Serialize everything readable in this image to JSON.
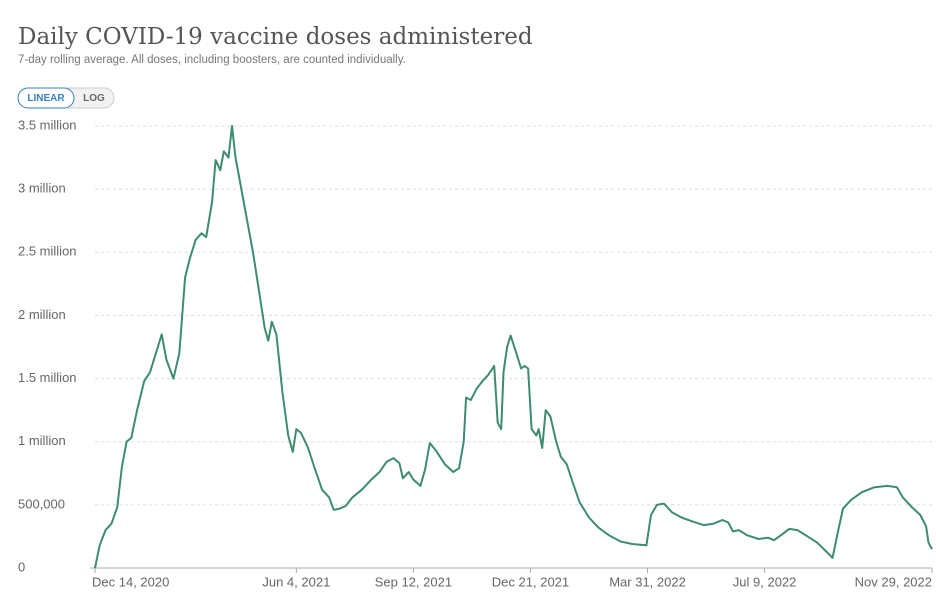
{
  "chart_data": {
    "type": "line",
    "title": "Daily COVID-19 vaccine doses administered",
    "subtitle": "7-day rolling average. All doses, including boosters, are counted individually.",
    "buttons": [
      "LINEAR",
      "LOG"
    ],
    "color": "#3d8c6d",
    "grid": true,
    "log_scale": false,
    "xlim": [
      "2020-12-14",
      "2022-11-29"
    ],
    "xticks": [
      {
        "value": "2020-12-14",
        "label": "Dec 14, 2020"
      },
      {
        "value": "2021-06-04",
        "label": "Jun 4, 2021"
      },
      {
        "value": "2021-09-12",
        "label": "Sep 12, 2021"
      },
      {
        "value": "2021-12-21",
        "label": "Dec 21, 2021"
      },
      {
        "value": "2022-03-31",
        "label": "Mar 31, 2022"
      },
      {
        "value": "2022-07-09",
        "label": "Jul 9, 2022"
      },
      {
        "value": "2022-11-29",
        "label": "Nov 29, 2022"
      }
    ],
    "ylim": [
      0,
      3500000
    ],
    "yticks": [
      0,
      {
        "value": 500000,
        "label": "500,000"
      },
      {
        "value": 1000000,
        "label": "1 million"
      },
      {
        "value": 1500000,
        "label": "1.5 million"
      },
      {
        "value": 2000000,
        "label": "2 million"
      },
      {
        "value": 2500000,
        "label": "2.5 million"
      },
      {
        "value": 3000000,
        "label": "3 million"
      },
      {
        "value": 3500000,
        "label": "3.5 million"
      }
    ],
    "x": [
      "2020-12-14",
      "2020-12-18",
      "2020-12-23",
      "2020-12-28",
      "2021-01-02",
      "2021-01-06",
      "2021-01-10",
      "2021-01-14",
      "2021-01-19",
      "2021-01-25",
      "2021-01-30",
      "2021-02-04",
      "2021-02-09",
      "2021-02-13",
      "2021-02-19",
      "2021-02-24",
      "2021-03-01",
      "2021-03-05",
      "2021-03-10",
      "2021-03-15",
      "2021-03-19",
      "2021-03-24",
      "2021-03-27",
      "2021-03-31",
      "2021-04-03",
      "2021-04-07",
      "2021-04-10",
      "2021-04-13",
      "2021-04-17",
      "2021-04-22",
      "2021-04-28",
      "2021-05-03",
      "2021-05-08",
      "2021-05-11",
      "2021-05-14",
      "2021-05-18",
      "2021-05-23",
      "2021-05-28",
      "2021-06-01",
      "2021-06-04",
      "2021-06-08",
      "2021-06-14",
      "2021-06-20",
      "2021-06-26",
      "2021-07-02",
      "2021-07-06",
      "2021-07-11",
      "2021-07-16",
      "2021-07-22",
      "2021-07-30",
      "2021-08-07",
      "2021-08-14",
      "2021-08-20",
      "2021-08-26",
      "2021-08-31",
      "2021-09-03",
      "2021-09-08",
      "2021-09-12",
      "2021-09-18",
      "2021-09-22",
      "2021-09-26",
      "2021-10-02",
      "2021-10-09",
      "2021-10-16",
      "2021-10-21",
      "2021-10-25",
      "2021-10-27",
      "2021-10-31",
      "2021-11-05",
      "2021-11-10",
      "2021-11-15",
      "2021-11-20",
      "2021-11-23",
      "2021-11-26",
      "2021-11-28",
      "2021-12-01",
      "2021-12-04",
      "2021-12-09",
      "2021-12-13",
      "2021-12-16",
      "2021-12-19",
      "2021-12-22",
      "2021-12-26",
      "2021-12-28",
      "2021-12-31",
      "2022-01-03",
      "2022-01-07",
      "2022-01-12",
      "2022-01-16",
      "2022-01-21",
      "2022-01-26",
      "2022-02-01",
      "2022-02-09",
      "2022-02-17",
      "2022-02-26",
      "2022-03-08",
      "2022-03-18",
      "2022-03-30",
      "2022-04-03",
      "2022-04-08",
      "2022-04-14",
      "2022-04-21",
      "2022-04-29",
      "2022-05-08",
      "2022-05-18",
      "2022-05-26",
      "2022-06-03",
      "2022-06-08",
      "2022-06-12",
      "2022-06-17",
      "2022-06-24",
      "2022-07-04",
      "2022-07-12",
      "2022-07-17",
      "2022-07-23",
      "2022-07-30",
      "2022-08-06",
      "2022-08-13",
      "2022-08-23",
      "2022-09-03",
      "2022-09-05",
      "2022-09-10",
      "2022-09-14",
      "2022-09-21",
      "2022-09-30",
      "2022-10-11",
      "2022-10-22",
      "2022-10-30",
      "2022-11-04",
      "2022-11-12",
      "2022-11-19",
      "2022-11-24",
      "2022-11-26",
      "2022-11-29"
    ],
    "values": [
      0,
      180000,
      300000,
      350000,
      480000,
      800000,
      1000000,
      1030000,
      1250000,
      1480000,
      1550000,
      1700000,
      1850000,
      1650000,
      1500000,
      1700000,
      2300000,
      2450000,
      2600000,
      2650000,
      2620000,
      2900000,
      3230000,
      3150000,
      3300000,
      3250000,
      3500000,
      3250000,
      3050000,
      2800000,
      2500000,
      2200000,
      1900000,
      1800000,
      1950000,
      1850000,
      1400000,
      1050000,
      920000,
      1100000,
      1070000,
      950000,
      780000,
      620000,
      560000,
      460000,
      470000,
      490000,
      560000,
      620000,
      700000,
      760000,
      840000,
      870000,
      830000,
      710000,
      760000,
      700000,
      650000,
      780000,
      990000,
      920000,
      820000,
      760000,
      790000,
      1000000,
      1350000,
      1330000,
      1420000,
      1480000,
      1530000,
      1600000,
      1150000,
      1100000,
      1550000,
      1750000,
      1840000,
      1700000,
      1580000,
      1600000,
      1580000,
      1100000,
      1050000,
      1100000,
      950000,
      1250000,
      1200000,
      1000000,
      880000,
      820000,
      680000,
      520000,
      400000,
      320000,
      260000,
      210000,
      190000,
      180000,
      420000,
      500000,
      510000,
      440000,
      400000,
      370000,
      340000,
      350000,
      380000,
      360000,
      290000,
      300000,
      260000,
      230000,
      240000,
      220000,
      260000,
      310000,
      300000,
      260000,
      200000,
      100000,
      80000,
      300000,
      470000,
      540000,
      600000,
      640000,
      650000,
      640000,
      560000,
      480000,
      420000,
      330000,
      200000,
      150000
    ]
  }
}
